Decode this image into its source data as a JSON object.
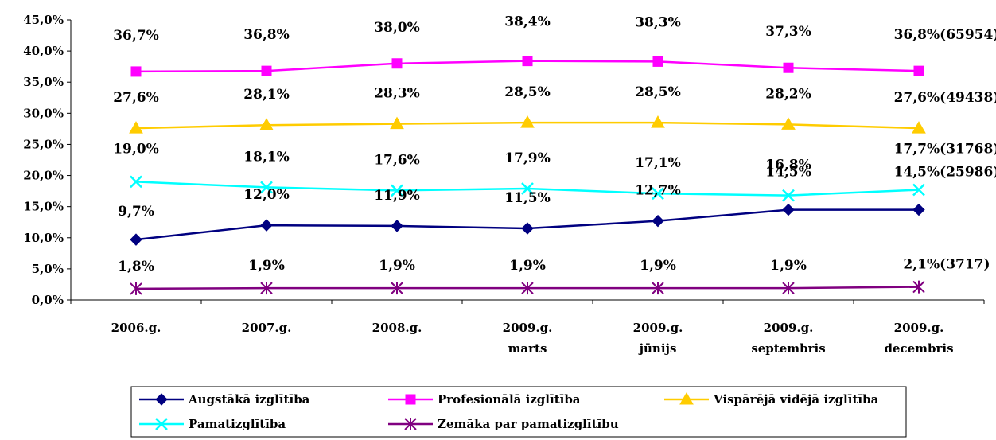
{
  "chart_data": {
    "type": "line",
    "categories": [
      [
        "2006.g."
      ],
      [
        "2007.g."
      ],
      [
        "2008.g."
      ],
      [
        "2009.g.",
        "marts"
      ],
      [
        "2009.g.",
        "jūnijs"
      ],
      [
        "2009.g.",
        "septembris"
      ],
      [
        "2009.g.",
        "decembris"
      ]
    ],
    "ylim": [
      0,
      45
    ],
    "ytick_labels": [
      "0,0%",
      "5,0%",
      "10,0%",
      "15,0%",
      "20,0%",
      "25,0%",
      "30,0%",
      "35,0%",
      "40,0%",
      "45,0%"
    ],
    "grid": false,
    "legend_position": "bottom",
    "series": [
      {
        "name": "Augstākā izglītība",
        "color": "#000080",
        "marker": "diamond",
        "values": [
          9.7,
          12.0,
          11.9,
          11.5,
          12.7,
          14.5,
          14.5
        ],
        "labels": [
          "9,7%",
          "12,0%",
          "11,9%",
          "11,5%",
          "12,7%",
          "14,5%",
          "14,5%(25986)"
        ]
      },
      {
        "name": "Profesionālā izglītība",
        "color": "#ff00ff",
        "marker": "square",
        "values": [
          36.7,
          36.8,
          38.0,
          38.4,
          38.3,
          37.3,
          36.8
        ],
        "labels": [
          "36,7%",
          "36,8%",
          "38,0%",
          "38,4%",
          "38,3%",
          "37,3%",
          "36,8%(65954)"
        ]
      },
      {
        "name": "Vispārējā vidējā izglītība",
        "color": "#ffcc00",
        "marker": "triangle",
        "values": [
          27.6,
          28.1,
          28.3,
          28.5,
          28.5,
          28.2,
          27.6
        ],
        "labels": [
          "27,6%",
          "28,1%",
          "28,3%",
          "28,5%",
          "28,5%",
          "28,2%",
          "27,6%(49438)"
        ]
      },
      {
        "name": "Pamatizglītība",
        "color": "#00ffff",
        "marker": "x",
        "values": [
          19.0,
          18.1,
          17.6,
          17.9,
          17.1,
          16.8,
          17.7
        ],
        "labels": [
          "19,0%",
          "18,1%",
          "17,6%",
          "17,9%",
          "17,1%",
          "16,8%",
          "17,7%(31768)"
        ]
      },
      {
        "name": "Zemāka par pamatizglītību",
        "color": "#800080",
        "marker": "star",
        "values": [
          1.8,
          1.9,
          1.9,
          1.9,
          1.9,
          1.9,
          2.1
        ],
        "labels": [
          "1,8%",
          "1,9%",
          "1,9%",
          "1,9%",
          "1,9%",
          "1,9%",
          "2,1%(3717)"
        ]
      }
    ]
  }
}
